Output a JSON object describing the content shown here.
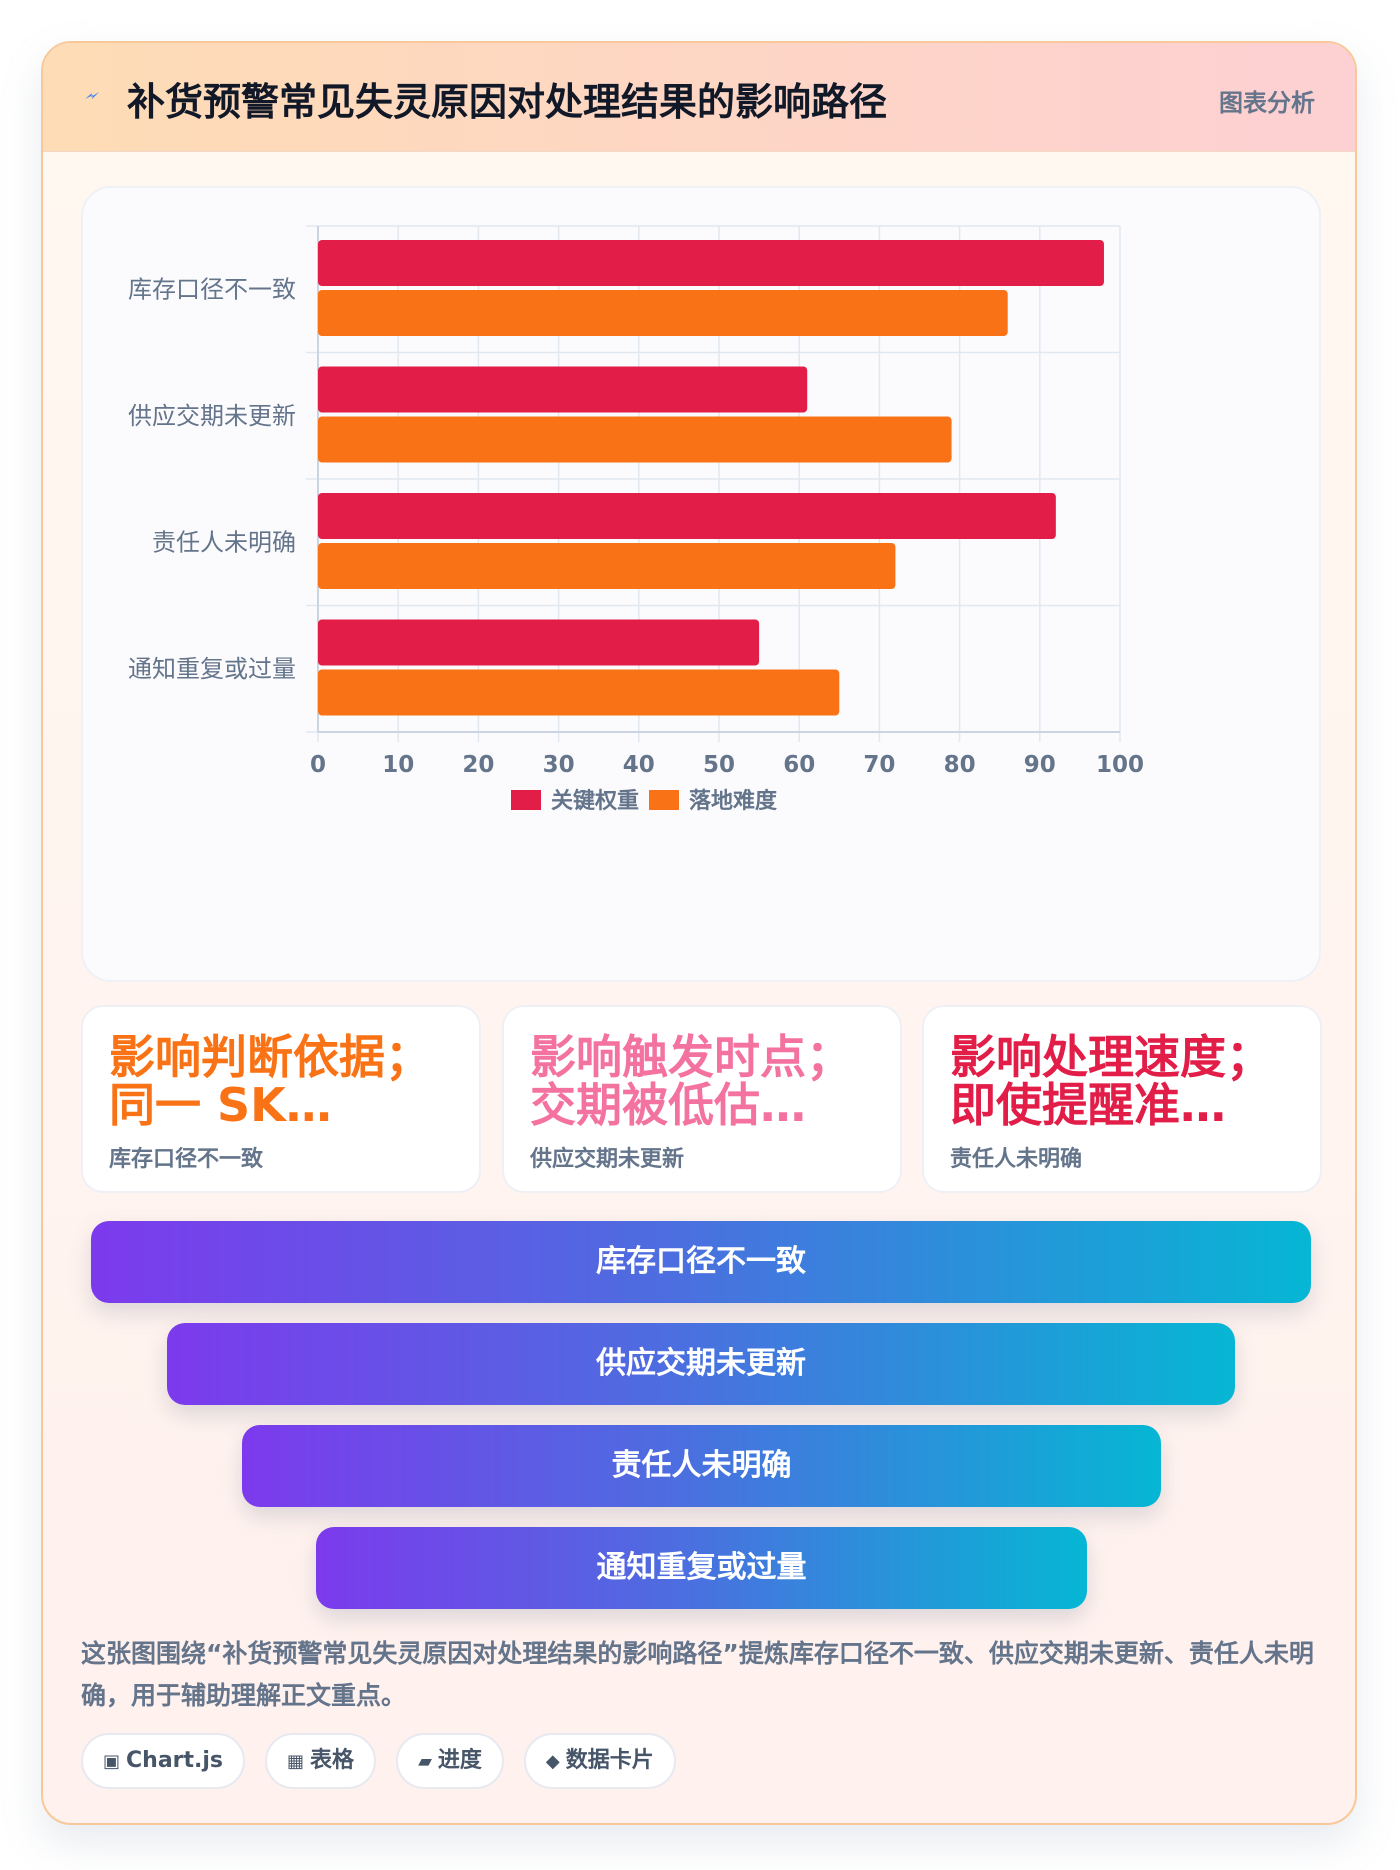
{
  "header": {
    "title": "补货预警常见失灵原因对处理结果的影响路径",
    "tag": "图表分析",
    "icon": "lightning-icon"
  },
  "colors": {
    "series1": "#e11d48",
    "series2": "#f97316",
    "funnel_start": "#7c3aed",
    "funnel_end": "#06b6d4"
  },
  "chart_data": {
    "type": "bar",
    "orientation": "horizontal",
    "categories": [
      "库存口径不一致",
      "供应交期未更新",
      "责任人未明确",
      "通知重复或过量"
    ],
    "series": [
      {
        "name": "关键权重",
        "values": [
          98,
          61,
          92,
          55
        ]
      },
      {
        "name": "落地难度",
        "values": [
          86,
          79,
          72,
          65
        ]
      }
    ],
    "xlim": [
      0,
      100
    ],
    "xticks": [
      0,
      10,
      20,
      30,
      40,
      50,
      60,
      70,
      80,
      90,
      100
    ],
    "grid": true,
    "legend": "bottom"
  },
  "stats": [
    {
      "big": "影响判断依据；同一 SK…",
      "line1": "影响判断依据；",
      "line2": "同一 SK…",
      "label": "库存口径不一致",
      "color": "#f97316"
    },
    {
      "big": "影响触发时点；交期被低估…",
      "line1": "影响触发时点；",
      "line2": "交期被低估…",
      "label": "供应交期未更新",
      "color": "#f472a0"
    },
    {
      "big": "影响处理速度；即使提醒准…",
      "line1": "影响处理速度；",
      "line2": "即使提醒准…",
      "label": "责任人未明确",
      "color": "#e11d48"
    }
  ],
  "funnel": [
    "库存口径不一致",
    "供应交期未更新",
    "责任人未明确",
    "通知重复或过量"
  ],
  "description": "这张图围绕“补货预警常见失灵原因对处理结果的影响路径”提炼库存口径不一致、供应交期未更新、责任人未明确，用于辅助理解正文重点。",
  "chips": [
    {
      "icon": "▣",
      "label": "Chart.js"
    },
    {
      "icon": "▦",
      "label": "表格"
    },
    {
      "icon": "▰",
      "label": "进度"
    },
    {
      "icon": "◆",
      "label": "数据卡片"
    }
  ]
}
